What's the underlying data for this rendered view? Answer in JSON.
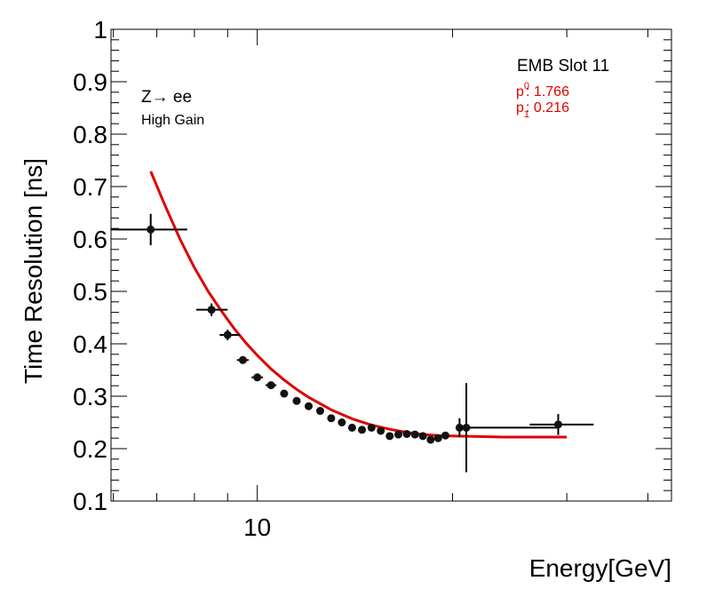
{
  "chart_data": {
    "type": "scatter",
    "xscale": "log",
    "xlim": [
      5.95,
      43.5
    ],
    "ylim": [
      0.1,
      1.0
    ],
    "xlabel": "Energy[GeV]",
    "ylabel": "Time Resolution [ns]",
    "yticks": [
      0.1,
      0.2,
      0.3,
      0.4,
      0.5,
      0.6,
      0.7,
      0.8,
      0.9,
      1.0
    ],
    "ytick_labels": [
      "0.1",
      "0.2",
      "0.3",
      "0.4",
      "0.5",
      "0.6",
      "0.7",
      "0.8",
      "0.9",
      "1"
    ],
    "xticks_major": [
      10
    ],
    "xtick_labels": [
      "10"
    ],
    "xticks_minor": [
      6,
      7,
      8,
      9,
      20,
      30,
      40
    ],
    "annotations": {
      "process": "Z→ ee",
      "gain": "High Gain",
      "slot": "EMB Slot 11"
    },
    "fit_params": {
      "p0_label": "p",
      "p0_sub": "0",
      "p0_value": ": 1.766",
      "p1_label": "p",
      "p1_sub": "1",
      "p1_value": ": 0.216"
    },
    "series": [
      {
        "name": "data",
        "color": "#000000",
        "points": [
          {
            "x": 6.85,
            "y": 0.618,
            "xlo": 5.95,
            "xhi": 7.8,
            "yerr": 0.03
          },
          {
            "x": 8.5,
            "y": 0.465,
            "xlo": 8.05,
            "xhi": 9.0,
            "yerr": 0.012
          },
          {
            "x": 9.0,
            "y": 0.417,
            "xlo": 8.75,
            "xhi": 9.4,
            "yerr": 0.01
          },
          {
            "x": 9.5,
            "y": 0.369,
            "xlo": 9.3,
            "xhi": 9.7,
            "yerr": 0.006
          },
          {
            "x": 10.0,
            "y": 0.336,
            "xlo": 9.8,
            "xhi": 10.2,
            "yerr": 0.005
          },
          {
            "x": 10.5,
            "y": 0.321,
            "xlo": 10.3,
            "xhi": 10.7,
            "yerr": 0.005
          },
          {
            "x": 11.0,
            "y": 0.305,
            "xlo": 10.85,
            "xhi": 11.15,
            "yerr": 0.005
          },
          {
            "x": 11.5,
            "y": 0.291,
            "xlo": 11.35,
            "xhi": 11.65,
            "yerr": 0.004
          },
          {
            "x": 12.0,
            "y": 0.281,
            "xlo": 11.85,
            "xhi": 12.15,
            "yerr": 0.004
          },
          {
            "x": 12.5,
            "y": 0.272,
            "xlo": 12.35,
            "xhi": 12.65,
            "yerr": 0.004
          },
          {
            "x": 13.0,
            "y": 0.258,
            "xlo": 12.85,
            "xhi": 13.15,
            "yerr": 0.004
          },
          {
            "x": 13.5,
            "y": 0.25,
            "xlo": 13.35,
            "xhi": 13.65,
            "yerr": 0.004
          },
          {
            "x": 14.0,
            "y": 0.24,
            "xlo": 13.85,
            "xhi": 14.15,
            "yerr": 0.004
          },
          {
            "x": 14.5,
            "y": 0.236,
            "xlo": 14.35,
            "xhi": 14.65,
            "yerr": 0.004
          },
          {
            "x": 15.0,
            "y": 0.24,
            "xlo": 14.85,
            "xhi": 15.15,
            "yerr": 0.004
          },
          {
            "x": 15.5,
            "y": 0.234,
            "xlo": 15.35,
            "xhi": 15.65,
            "yerr": 0.004
          },
          {
            "x": 16.0,
            "y": 0.224,
            "xlo": 15.85,
            "xhi": 16.15,
            "yerr": 0.004
          },
          {
            "x": 16.5,
            "y": 0.227,
            "xlo": 16.35,
            "xhi": 16.65,
            "yerr": 0.004
          },
          {
            "x": 17.0,
            "y": 0.228,
            "xlo": 16.85,
            "xhi": 17.15,
            "yerr": 0.004
          },
          {
            "x": 17.5,
            "y": 0.227,
            "xlo": 17.35,
            "xhi": 17.65,
            "yerr": 0.004
          },
          {
            "x": 18.0,
            "y": 0.224,
            "xlo": 17.85,
            "xhi": 18.15,
            "yerr": 0.004
          },
          {
            "x": 18.5,
            "y": 0.217,
            "xlo": 18.35,
            "xhi": 18.65,
            "yerr": 0.004
          },
          {
            "x": 19.0,
            "y": 0.22,
            "xlo": 18.85,
            "xhi": 19.15,
            "yerr": 0.004
          },
          {
            "x": 19.5,
            "y": 0.225,
            "xlo": 19.35,
            "xhi": 19.65,
            "yerr": 0.004
          },
          {
            "x": 20.5,
            "y": 0.24,
            "xlo": 20.3,
            "xhi": 20.7,
            "yerr": 0.018
          },
          {
            "x": 21.0,
            "y": 0.24,
            "xlo": 20.5,
            "xhi": 29.1,
            "yerr": 0.085
          },
          {
            "x": 29.1,
            "y": 0.246,
            "xlo": 26.3,
            "xhi": 33.0,
            "yerr": 0.02
          }
        ]
      }
    ],
    "fit": {
      "name": "fit",
      "color": "#e00000",
      "x": [
        6.85,
        7.2,
        7.6,
        8.0,
        8.4,
        8.8,
        9.2,
        9.6,
        10.0,
        10.5,
        11.0,
        11.5,
        12.0,
        13.0,
        14.0,
        15.0,
        16.0,
        17.0,
        18.0,
        19.0,
        20.0,
        22.0,
        24.0,
        26.0,
        28.0,
        30.0
      ],
      "y": [
        0.729,
        0.665,
        0.6,
        0.545,
        0.5,
        0.463,
        0.43,
        0.402,
        0.378,
        0.352,
        0.331,
        0.313,
        0.298,
        0.274,
        0.257,
        0.245,
        0.237,
        0.231,
        0.227,
        0.225,
        0.224,
        0.223,
        0.222,
        0.222,
        0.222,
        0.222
      ]
    }
  }
}
